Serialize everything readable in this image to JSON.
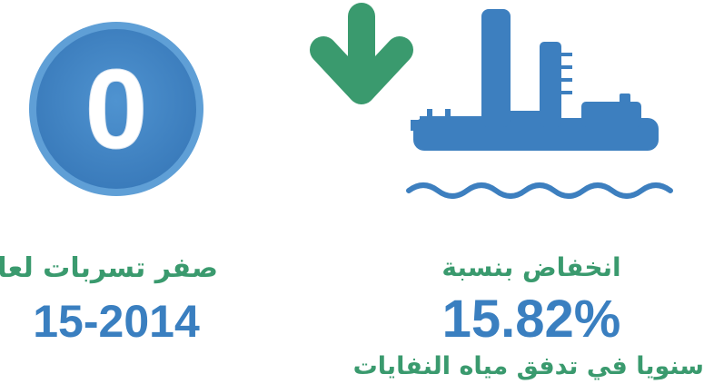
{
  "left": {
    "badge": "0",
    "title": "صفر تسربات لعام",
    "value": "15-2014"
  },
  "right": {
    "title": "انخفاض بنسبة",
    "value": "15.82%",
    "subtitle": "سنويا في تدفق مياه النفايات"
  }
}
